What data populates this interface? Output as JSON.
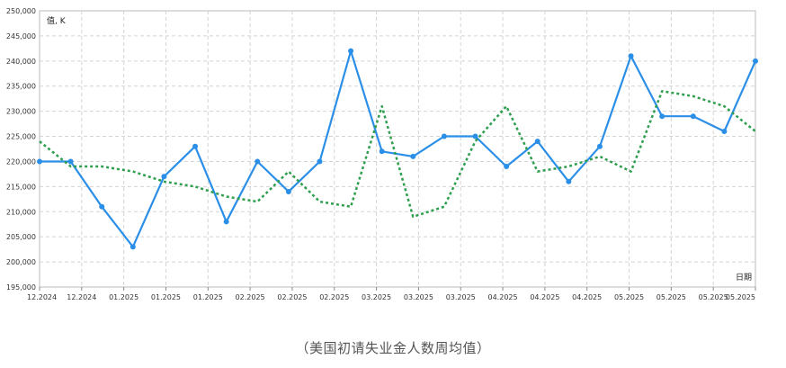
{
  "caption": "（美国初请失业金人数周均值）",
  "chart_data": {
    "type": "line",
    "ylabel": "值, K",
    "xlabel": "日期",
    "ylim": [
      195000,
      250000
    ],
    "y_ticks": [
      "195,000",
      "200,000",
      "205,000",
      "210,000",
      "215,000",
      "220,000",
      "225,000",
      "230,000",
      "235,000",
      "240,000",
      "245,000",
      "250,000"
    ],
    "x_ticks": [
      "12.2024",
      "12.2024",
      "01.2025",
      "01.2025",
      "01.2025",
      "02.2025",
      "02.2025",
      "02.2025",
      "03.2025",
      "03.2025",
      "03.2025",
      "04.2025",
      "04.2025",
      "04.2025",
      "05.2025",
      "05.2025",
      "05.2025",
      "05.2025"
    ],
    "grid": true,
    "series": [
      {
        "style": "solid",
        "color": "#2b8fe8",
        "x": [
          0,
          1,
          2,
          3,
          4,
          5,
          6,
          7,
          8,
          9,
          10,
          11,
          12,
          13,
          14,
          15,
          16,
          17,
          18,
          19,
          20,
          21,
          22,
          23
        ],
        "values": [
          220000,
          220000,
          211000,
          203000,
          217000,
          223000,
          208000,
          220000,
          214000,
          220000,
          242000,
          222000,
          221000,
          225000,
          225000,
          219000,
          224000,
          216000,
          223000,
          241000,
          229000,
          229000,
          226000,
          240000
        ]
      },
      {
        "style": "dotted",
        "color": "#2e9e4f",
        "x": [
          0,
          1,
          2,
          3,
          4,
          5,
          6,
          7,
          8,
          9,
          10,
          11,
          12,
          13,
          14,
          15,
          16,
          17,
          18,
          19,
          20,
          21,
          22,
          23
        ],
        "values": [
          224000,
          219000,
          219000,
          218000,
          216000,
          215000,
          213000,
          212000,
          218000,
          212000,
          211000,
          231000,
          209000,
          211000,
          224000,
          231000,
          218000,
          219000,
          221000,
          218000,
          234000,
          233000,
          231000,
          226000
        ]
      }
    ]
  }
}
